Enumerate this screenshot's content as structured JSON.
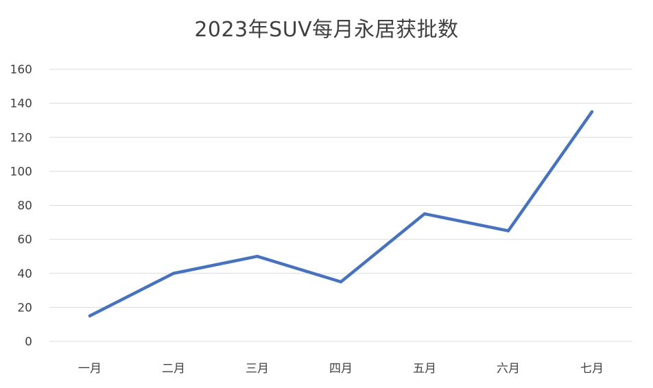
{
  "chart_data": {
    "type": "line",
    "title": "2023年SUV每月永居获批数",
    "xlabel": "",
    "ylabel": "",
    "categories": [
      "一月",
      "二月",
      "三月",
      "四月",
      "五月",
      "六月",
      "七月"
    ],
    "series": [
      {
        "values": [
          15,
          40,
          50,
          35,
          75,
          65,
          135
        ],
        "color": "#4472C4"
      }
    ],
    "ylim": [
      0,
      160
    ],
    "yticks": [
      0,
      20,
      40,
      60,
      80,
      100,
      120,
      140,
      160
    ],
    "grid": true,
    "legend": "none"
  }
}
